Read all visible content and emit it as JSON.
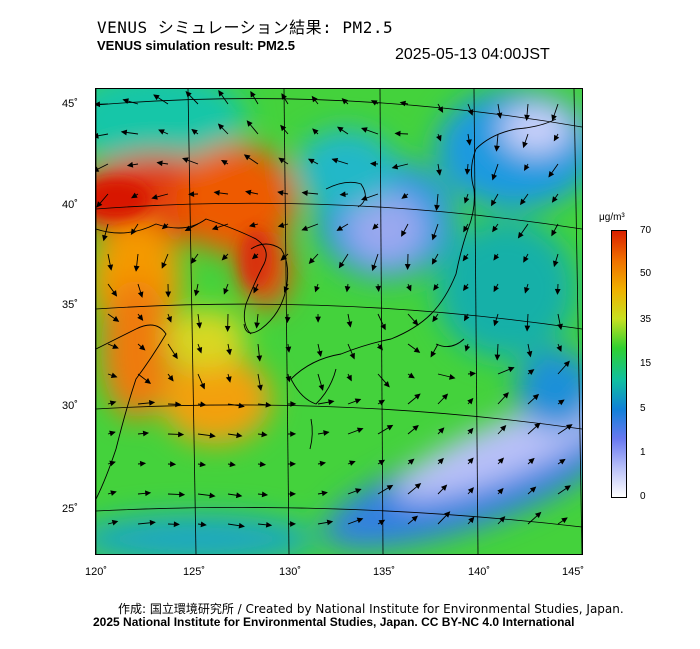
{
  "header": {
    "title_jp": "VENUS シミュレーション結果: PM2.5",
    "title_en": "VENUS simulation result: PM2.5",
    "timestamp": "2025-05-13 04:00JST"
  },
  "map": {
    "lon_range": [
      120,
      145
    ],
    "lat_range": [
      23,
      46
    ],
    "lat_ticks": [
      "45˚",
      "40˚",
      "35˚",
      "30˚",
      "25˚"
    ],
    "lon_ticks": [
      "120˚",
      "125˚",
      "130˚",
      "135˚",
      "140˚",
      "145˚"
    ],
    "field": "PM2.5 concentration with wind vectors"
  },
  "colorbar": {
    "unit": "μg/m³",
    "labels": [
      "70",
      "50",
      "35",
      "15",
      "5",
      "1",
      "0"
    ],
    "colors": [
      "#d92000",
      "#f07000",
      "#f0b000",
      "#c8e020",
      "#30d030",
      "#10c0a0",
      "#1080d8",
      "#6878f0",
      "#b8c0f8",
      "#ffffff"
    ]
  },
  "footer": {
    "credit_line": "作成: 国立環境研究所 / Created by National Institute for Environmental Studies, Japan.",
    "license_line": "2025 National Institute for Environmental Studies, Japan. CC BY-NC 4.0 International"
  }
}
